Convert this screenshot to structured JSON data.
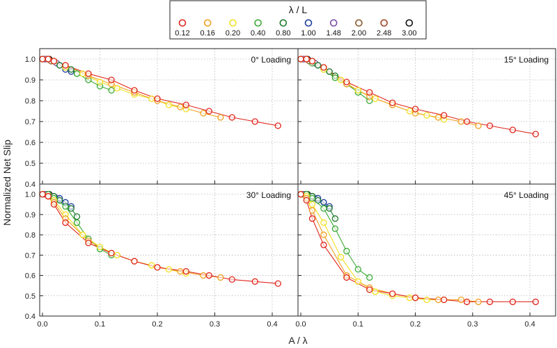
{
  "chart_data": {
    "type": "line",
    "title": "",
    "xlabel": "A / λ",
    "ylabel": "Normalized Net Slip",
    "xlim": [
      0,
      0.44
    ],
    "ylim": [
      0.4,
      1.05
    ],
    "xticks": [
      "0.0",
      "0.1",
      "0.2",
      "0.3",
      "0.4"
    ],
    "yticks": [
      "0.4",
      "0.5",
      "0.6",
      "0.7",
      "0.8",
      "0.9",
      "1.0"
    ],
    "grid": true,
    "legend": {
      "title": "λ / L",
      "placement": "top-center",
      "entries": [
        {
          "label": "0.12",
          "color": "#e0251b"
        },
        {
          "label": "0.16",
          "color": "#f0a020"
        },
        {
          "label": "0.20",
          "color": "#f0e020"
        },
        {
          "label": "0.40",
          "color": "#3aaa35"
        },
        {
          "label": "0.80",
          "color": "#1a7a2a"
        },
        {
          "label": "1.00",
          "color": "#1a3a9a"
        },
        {
          "label": "1.48",
          "color": "#7a4aa8"
        },
        {
          "label": "2.00",
          "color": "#8a5a2a"
        },
        {
          "label": "2.48",
          "color": "#a04020"
        },
        {
          "label": "3.00",
          "color": "#111111"
        }
      ]
    },
    "panels": [
      {
        "title": "0° Loading",
        "series": [
          {
            "name": "0.12",
            "x": [
              0,
              0.01,
              0.02,
              0.04,
              0.08,
              0.12,
              0.16,
              0.2,
              0.25,
              0.29,
              0.33,
              0.37,
              0.41
            ],
            "y": [
              1.0,
              1.0,
              0.99,
              0.97,
              0.93,
              0.9,
              0.85,
              0.81,
              0.78,
              0.75,
              0.72,
              0.7,
              0.68
            ]
          },
          {
            "name": "0.16",
            "x": [
              0,
              0.01,
              0.02,
              0.04,
              0.08,
              0.12,
              0.16,
              0.2,
              0.24,
              0.28,
              0.31
            ],
            "y": [
              1.0,
              1.0,
              0.99,
              0.97,
              0.92,
              0.88,
              0.84,
              0.8,
              0.77,
              0.74,
              0.72
            ]
          },
          {
            "name": "0.20",
            "x": [
              0,
              0.01,
              0.02,
              0.04,
              0.07,
              0.1,
              0.13,
              0.16,
              0.19,
              0.22,
              0.25
            ],
            "y": [
              1.0,
              1.0,
              0.99,
              0.96,
              0.93,
              0.89,
              0.86,
              0.83,
              0.81,
              0.78,
              0.76
            ]
          },
          {
            "name": "0.40",
            "x": [
              0,
              0.01,
              0.02,
              0.04,
              0.06,
              0.08,
              0.1,
              0.12
            ],
            "y": [
              1.0,
              1.0,
              0.99,
              0.96,
              0.93,
              0.9,
              0.87,
              0.85
            ]
          },
          {
            "name": "0.80",
            "x": [
              0,
              0.01,
              0.02,
              0.03,
              0.05,
              0.06
            ],
            "y": [
              1.0,
              1.0,
              0.99,
              0.97,
              0.95,
              0.93
            ]
          },
          {
            "name": "1.00",
            "x": [
              0,
              0.01,
              0.02,
              0.03,
              0.04,
              0.05
            ],
            "y": [
              1.0,
              1.0,
              0.99,
              0.97,
              0.95,
              0.94
            ]
          },
          {
            "name": "1.48",
            "x": [
              0,
              0.005,
              0.01,
              0.02,
              0.025
            ],
            "y": [
              1.0,
              1.0,
              1.0,
              0.99,
              0.98
            ]
          },
          {
            "name": "2.00",
            "x": [
              0,
              0.005,
              0.01,
              0.015
            ],
            "y": [
              1.0,
              1.0,
              1.0,
              0.99
            ]
          },
          {
            "name": "2.48",
            "x": [
              0,
              0.005,
              0.01
            ],
            "y": [
              1.0,
              1.0,
              1.0
            ]
          },
          {
            "name": "3.00",
            "x": [
              0,
              0.004,
              0.008,
              0.012
            ],
            "y": [
              1.0,
              1.0,
              1.0,
              1.0
            ]
          }
        ]
      },
      {
        "title": "15° Loading",
        "series": [
          {
            "name": "0.12",
            "x": [
              0,
              0.01,
              0.02,
              0.04,
              0.08,
              0.12,
              0.16,
              0.2,
              0.25,
              0.29,
              0.33,
              0.37,
              0.41
            ],
            "y": [
              1.0,
              1.0,
              0.99,
              0.96,
              0.89,
              0.84,
              0.79,
              0.76,
              0.73,
              0.7,
              0.68,
              0.66,
              0.64
            ]
          },
          {
            "name": "0.16",
            "x": [
              0,
              0.01,
              0.02,
              0.04,
              0.08,
              0.12,
              0.16,
              0.2,
              0.24,
              0.28,
              0.31
            ],
            "y": [
              1.0,
              1.0,
              0.99,
              0.96,
              0.88,
              0.82,
              0.78,
              0.74,
              0.72,
              0.7,
              0.68
            ]
          },
          {
            "name": "0.20",
            "x": [
              0,
              0.01,
              0.02,
              0.04,
              0.07,
              0.1,
              0.13,
              0.16,
              0.19,
              0.22,
              0.25
            ],
            "y": [
              1.0,
              1.0,
              0.99,
              0.95,
              0.9,
              0.85,
              0.81,
              0.78,
              0.75,
              0.73,
              0.71
            ]
          },
          {
            "name": "0.40",
            "x": [
              0,
              0.01,
              0.02,
              0.04,
              0.06,
              0.08,
              0.1,
              0.12
            ],
            "y": [
              1.0,
              1.0,
              0.98,
              0.95,
              0.91,
              0.88,
              0.84,
              0.8
            ]
          },
          {
            "name": "0.80",
            "x": [
              0,
              0.01,
              0.02,
              0.03,
              0.05,
              0.06
            ],
            "y": [
              1.0,
              1.0,
              0.99,
              0.97,
              0.94,
              0.92
            ]
          },
          {
            "name": "1.00",
            "x": [
              0,
              0.01,
              0.02,
              0.03,
              0.04,
              0.05
            ],
            "y": [
              1.0,
              1.0,
              0.99,
              0.97,
              0.96,
              0.94
            ]
          },
          {
            "name": "1.48",
            "x": [
              0,
              0.005,
              0.01,
              0.02,
              0.025
            ],
            "y": [
              1.0,
              1.0,
              1.0,
              0.99,
              0.98
            ]
          },
          {
            "name": "2.00",
            "x": [
              0,
              0.005,
              0.01,
              0.015
            ],
            "y": [
              1.0,
              1.0,
              1.0,
              0.99
            ]
          },
          {
            "name": "2.48",
            "x": [
              0,
              0.005,
              0.01
            ],
            "y": [
              1.0,
              1.0,
              1.0
            ]
          },
          {
            "name": "3.00",
            "x": [
              0,
              0.004,
              0.008,
              0.012
            ],
            "y": [
              1.0,
              1.0,
              1.0,
              1.0
            ]
          }
        ]
      },
      {
        "title": "30° Loading",
        "series": [
          {
            "name": "0.12",
            "x": [
              0,
              0.01,
              0.02,
              0.04,
              0.08,
              0.12,
              0.16,
              0.2,
              0.25,
              0.29,
              0.33,
              0.37,
              0.41
            ],
            "y": [
              1.0,
              0.99,
              0.95,
              0.86,
              0.76,
              0.71,
              0.67,
              0.64,
              0.62,
              0.6,
              0.58,
              0.57,
              0.56
            ]
          },
          {
            "name": "0.16",
            "x": [
              0,
              0.01,
              0.02,
              0.04,
              0.08,
              0.12,
              0.16,
              0.2,
              0.24,
              0.28,
              0.31
            ],
            "y": [
              1.0,
              0.99,
              0.96,
              0.88,
              0.77,
              0.71,
              0.67,
              0.64,
              0.62,
              0.6,
              0.59
            ]
          },
          {
            "name": "0.20",
            "x": [
              0,
              0.01,
              0.02,
              0.04,
              0.07,
              0.1,
              0.13,
              0.16,
              0.19,
              0.22,
              0.25
            ],
            "y": [
              1.0,
              0.99,
              0.97,
              0.9,
              0.8,
              0.74,
              0.7,
              0.67,
              0.65,
              0.63,
              0.61
            ]
          },
          {
            "name": "0.40",
            "x": [
              0,
              0.01,
              0.02,
              0.04,
              0.06,
              0.08,
              0.1,
              0.12
            ],
            "y": [
              1.0,
              1.0,
              0.98,
              0.94,
              0.86,
              0.78,
              0.73,
              0.7
            ]
          },
          {
            "name": "0.80",
            "x": [
              0,
              0.01,
              0.02,
              0.03,
              0.05,
              0.06
            ],
            "y": [
              1.0,
              1.0,
              0.99,
              0.97,
              0.93,
              0.89
            ]
          },
          {
            "name": "1.00",
            "x": [
              0,
              0.01,
              0.02,
              0.03,
              0.04,
              0.05
            ],
            "y": [
              1.0,
              1.0,
              0.99,
              0.98,
              0.96,
              0.94
            ]
          },
          {
            "name": "1.48",
            "x": [
              0,
              0.005,
              0.01,
              0.02,
              0.025
            ],
            "y": [
              1.0,
              1.0,
              1.0,
              0.99,
              0.98
            ]
          },
          {
            "name": "2.00",
            "x": [
              0,
              0.005,
              0.01,
              0.015
            ],
            "y": [
              1.0,
              1.0,
              1.0,
              0.99
            ]
          },
          {
            "name": "2.48",
            "x": [
              0,
              0.005,
              0.01
            ],
            "y": [
              1.0,
              1.0,
              1.0
            ]
          },
          {
            "name": "3.00",
            "x": [
              0,
              0.004,
              0.008,
              0.012
            ],
            "y": [
              1.0,
              1.0,
              1.0,
              1.0
            ]
          }
        ]
      },
      {
        "title": "45° Loading",
        "series": [
          {
            "name": "0.12",
            "x": [
              0,
              0.01,
              0.02,
              0.04,
              0.08,
              0.12,
              0.16,
              0.2,
              0.25,
              0.29,
              0.33,
              0.37,
              0.41
            ],
            "y": [
              1.0,
              0.97,
              0.88,
              0.75,
              0.59,
              0.53,
              0.51,
              0.49,
              0.48,
              0.47,
              0.47,
              0.47,
              0.47
            ]
          },
          {
            "name": "0.16",
            "x": [
              0,
              0.01,
              0.02,
              0.04,
              0.08,
              0.12,
              0.16,
              0.2,
              0.24,
              0.28,
              0.31
            ],
            "y": [
              1.0,
              0.98,
              0.92,
              0.8,
              0.6,
              0.54,
              0.51,
              0.49,
              0.48,
              0.48,
              0.47
            ]
          },
          {
            "name": "0.20",
            "x": [
              0,
              0.01,
              0.02,
              0.04,
              0.07,
              0.1,
              0.13,
              0.16,
              0.19,
              0.22,
              0.25
            ],
            "y": [
              1.0,
              0.99,
              0.95,
              0.86,
              0.69,
              0.57,
              0.52,
              0.5,
              0.49,
              0.48,
              0.48
            ]
          },
          {
            "name": "0.40",
            "x": [
              0,
              0.01,
              0.02,
              0.04,
              0.06,
              0.08,
              0.1,
              0.12
            ],
            "y": [
              1.0,
              1.0,
              0.98,
              0.93,
              0.83,
              0.72,
              0.63,
              0.59
            ]
          },
          {
            "name": "0.80",
            "x": [
              0,
              0.01,
              0.02,
              0.03,
              0.05,
              0.06
            ],
            "y": [
              1.0,
              1.0,
              0.99,
              0.97,
              0.93,
              0.88
            ]
          },
          {
            "name": "1.00",
            "x": [
              0,
              0.01,
              0.02,
              0.03,
              0.04,
              0.05
            ],
            "y": [
              1.0,
              1.0,
              0.99,
              0.98,
              0.96,
              0.94
            ]
          },
          {
            "name": "1.48",
            "x": [
              0,
              0.005,
              0.01,
              0.02,
              0.025
            ],
            "y": [
              1.0,
              1.0,
              1.0,
              0.99,
              0.98
            ]
          },
          {
            "name": "2.00",
            "x": [
              0,
              0.005,
              0.01,
              0.015
            ],
            "y": [
              1.0,
              1.0,
              1.0,
              0.99
            ]
          },
          {
            "name": "2.48",
            "x": [
              0,
              0.005,
              0.01
            ],
            "y": [
              1.0,
              1.0,
              1.0
            ]
          },
          {
            "name": "3.00",
            "x": [
              0,
              0.004,
              0.008,
              0.012
            ],
            "y": [
              1.0,
              1.0,
              1.0,
              1.0
            ]
          }
        ]
      }
    ]
  }
}
